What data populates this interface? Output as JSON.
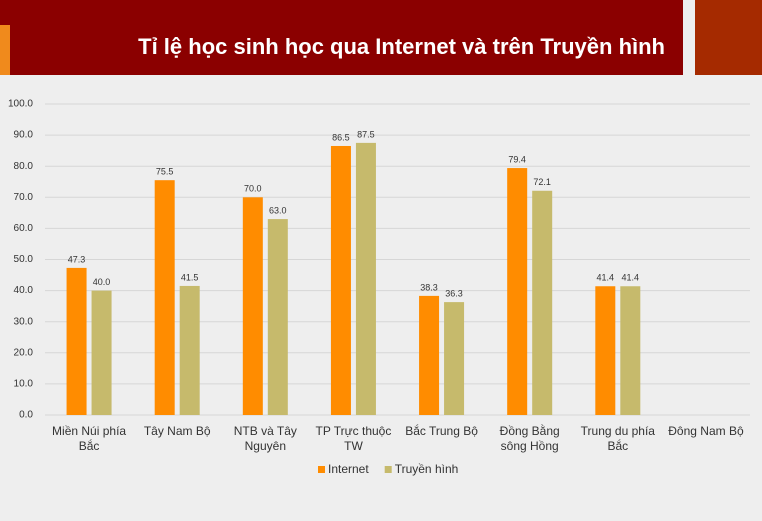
{
  "chart_data": {
    "type": "bar",
    "title": "Tỉ lệ học sinh học qua Internet và trên Truyền hình",
    "categories": [
      "Miền Núi phía Bắc",
      "Tây Nam Bộ",
      "NTB và Tây Nguyên",
      "TP Trực thuộc TW",
      "Bắc Trung Bộ",
      "Đồng Bằng sông Hồng",
      "Trung du phía Bắc",
      "Đông Nam Bộ"
    ],
    "series": [
      {
        "name": "Internet",
        "color": "#ff8c00",
        "values": [
          47.3,
          75.5,
          70.0,
          86.5,
          38.3,
          79.4,
          41.4,
          null
        ],
        "value_labels": [
          "47.3",
          "75.5",
          "70.0",
          "86.5",
          "38.3",
          "79.4",
          "41.4",
          null
        ]
      },
      {
        "name": "Truyền hình",
        "color": "#c6ba6c",
        "values": [
          40.0,
          41.5,
          63.0,
          87.5,
          36.3,
          72.1,
          41.4,
          null
        ],
        "value_labels": [
          "40.0",
          "41.5",
          "63.0",
          "87.5",
          "36.3",
          "72.1",
          "41.4",
          null
        ]
      }
    ],
    "ylim": [
      0,
      100
    ],
    "yticks": [
      {
        "value": 0,
        "label": "0.0"
      },
      {
        "value": 10,
        "label": "10.0"
      },
      {
        "value": 20,
        "label": "20.0"
      },
      {
        "value": 30,
        "label": "30.0"
      },
      {
        "value": 40,
        "label": "40.0"
      },
      {
        "value": 50,
        "label": "50.0"
      },
      {
        "value": 60,
        "label": "60.0"
      },
      {
        "value": 70,
        "label": "70.0"
      },
      {
        "value": 80,
        "label": "80.0"
      },
      {
        "value": 90,
        "label": "90.0"
      },
      {
        "value": 100,
        "label": "100.0"
      }
    ],
    "grid": true,
    "legend": "bottom"
  }
}
